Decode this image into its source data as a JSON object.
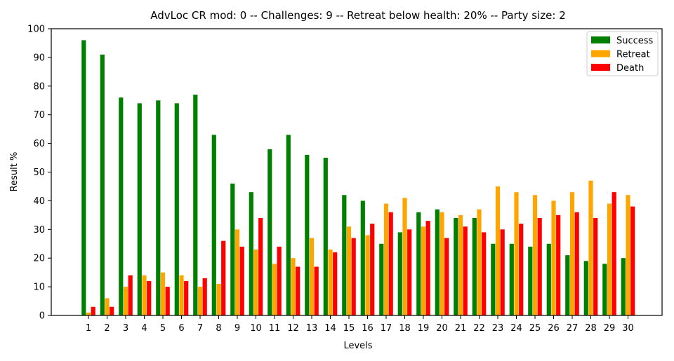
{
  "chart_data": {
    "type": "bar",
    "title": "AdvLoc CR mod: 0 -- Challenges: 9 -- Retreat below health: 20% -- Party size: 2",
    "xlabel": "Levels",
    "ylabel": "Result %",
    "ylim": [
      0,
      100
    ],
    "yticks": [
      0,
      10,
      20,
      30,
      40,
      50,
      60,
      70,
      80,
      90,
      100
    ],
    "grid": false,
    "legend_position": "top-right",
    "categories": [
      "1",
      "2",
      "3",
      "4",
      "5",
      "6",
      "7",
      "8",
      "9",
      "10",
      "11",
      "12",
      "13",
      "14",
      "15",
      "16",
      "17",
      "18",
      "19",
      "20",
      "21",
      "22",
      "23",
      "24",
      "25",
      "26",
      "27",
      "28",
      "29",
      "30"
    ],
    "series": [
      {
        "name": "Success",
        "color": "#008000",
        "values": [
          96,
          91,
          76,
          74,
          75,
          74,
          77,
          63,
          46,
          43,
          58,
          63,
          56,
          55,
          42,
          40,
          25,
          29,
          36,
          37,
          34,
          34,
          25,
          25,
          24,
          25,
          21,
          19,
          18,
          20
        ]
      },
      {
        "name": "Retreat",
        "color": "#ffa500",
        "values": [
          1,
          6,
          10,
          14,
          15,
          14,
          10,
          11,
          30,
          23,
          18,
          20,
          27,
          23,
          31,
          28,
          39,
          41,
          31,
          36,
          35,
          37,
          45,
          43,
          42,
          40,
          43,
          47,
          39,
          42
        ]
      },
      {
        "name": "Death",
        "color": "#ff0000",
        "values": [
          3,
          3,
          14,
          12,
          10,
          12,
          13,
          26,
          24,
          34,
          24,
          17,
          17,
          22,
          27,
          32,
          36,
          30,
          33,
          27,
          31,
          29,
          30,
          32,
          34,
          35,
          36,
          34,
          43,
          38
        ]
      }
    ]
  }
}
